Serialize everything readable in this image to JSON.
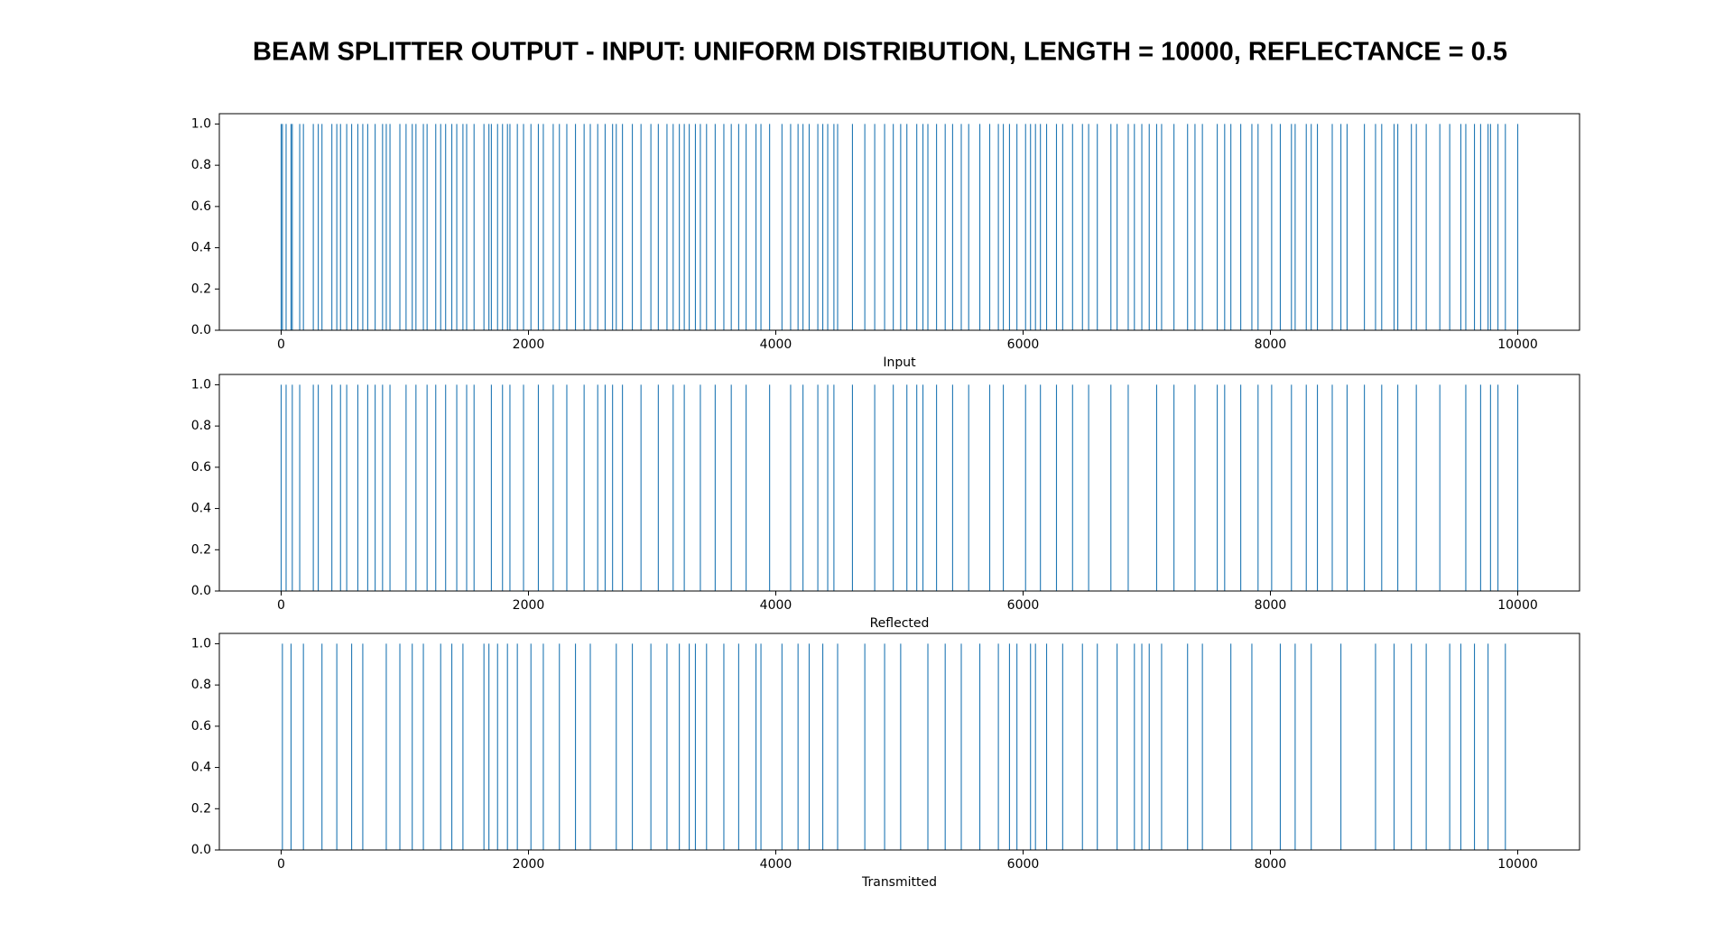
{
  "title": "BEAM SPLITTER OUTPUT -  INPUT: UNIFORM DISTRIBUTION, LENGTH = 10000, REFLECTANCE = 0.5",
  "chart_data": [
    {
      "type": "vlines",
      "xlabel": "Input",
      "color": "#1f77b4",
      "x": [
        0,
        10,
        40,
        80,
        90,
        150,
        180,
        260,
        300,
        330,
        410,
        450,
        480,
        530,
        570,
        620,
        660,
        700,
        760,
        820,
        850,
        880,
        960,
        1010,
        1060,
        1090,
        1150,
        1180,
        1250,
        1290,
        1330,
        1380,
        1420,
        1470,
        1500,
        1560,
        1640,
        1680,
        1700,
        1750,
        1790,
        1830,
        1850,
        1910,
        1960,
        2020,
        2080,
        2120,
        2200,
        2250,
        2310,
        2380,
        2450,
        2500,
        2560,
        2620,
        2680,
        2710,
        2760,
        2840,
        2910,
        2990,
        3050,
        3120,
        3170,
        3220,
        3260,
        3300,
        3350,
        3390,
        3440,
        3510,
        3580,
        3640,
        3700,
        3760,
        3840,
        3880,
        3950,
        4050,
        4120,
        4180,
        4220,
        4270,
        4340,
        4380,
        4420,
        4470,
        4500,
        4620,
        4720,
        4800,
        4880,
        4950,
        5010,
        5060,
        5140,
        5190,
        5230,
        5300,
        5370,
        5430,
        5500,
        5560,
        5650,
        5730,
        5800,
        5840,
        5890,
        5950,
        6020,
        6060,
        6100,
        6140,
        6190,
        6270,
        6320,
        6400,
        6480,
        6530,
        6600,
        6710,
        6760,
        6850,
        6900,
        6960,
        7020,
        7080,
        7120,
        7220,
        7330,
        7390,
        7450,
        7570,
        7630,
        7680,
        7760,
        7850,
        7900,
        8010,
        8080,
        8170,
        8200,
        8290,
        8330,
        8380,
        8500,
        8570,
        8620,
        8760,
        8850,
        8900,
        9000,
        9030,
        9140,
        9180,
        9260,
        9370,
        9450,
        9540,
        9580,
        9650,
        9700,
        9760,
        9780,
        9840,
        9900,
        10000
      ],
      "values": [
        1,
        1,
        1,
        1,
        1,
        1,
        1,
        1,
        1,
        1,
        1,
        1,
        1,
        1,
        1,
        1,
        1,
        1,
        1,
        1,
        1,
        1,
        1,
        1,
        1,
        1,
        1,
        1,
        1,
        1,
        1,
        1,
        1,
        1,
        1,
        1,
        1,
        1,
        1,
        1,
        1,
        1,
        1,
        1,
        1,
        1,
        1,
        1,
        1,
        1,
        1,
        1,
        1,
        1,
        1,
        1,
        1,
        1,
        1,
        1,
        1,
        1,
        1,
        1,
        1,
        1,
        1,
        1,
        1,
        1,
        1,
        1,
        1,
        1,
        1,
        1,
        1,
        1,
        1,
        1,
        1,
        1,
        1,
        1,
        1,
        1,
        1,
        1,
        1,
        1,
        1,
        1,
        1,
        1,
        1,
        1,
        1,
        1,
        1,
        1,
        1,
        1,
        1,
        1,
        1,
        1,
        1,
        1,
        1,
        1,
        1,
        1,
        1,
        1,
        1,
        1,
        1,
        1,
        1,
        1,
        1,
        1,
        1,
        1,
        1,
        1,
        1,
        1,
        1,
        1,
        1,
        1,
        1,
        1,
        1,
        1,
        1,
        1,
        1,
        1,
        1,
        1,
        1,
        1,
        1,
        1,
        1,
        1,
        1,
        1,
        1,
        1,
        1,
        1,
        1,
        1,
        1,
        1,
        1,
        1,
        1,
        1,
        1,
        1,
        1,
        1,
        1,
        1
      ],
      "xlim": [
        -500,
        10500
      ],
      "ylim": [
        0,
        1.05
      ],
      "xticks": [
        0,
        2000,
        4000,
        6000,
        8000,
        10000
      ],
      "yticks": [
        {
          "value": 0,
          "label": "0.0"
        },
        0.2,
        0.4,
        0.6,
        0.8,
        {
          "value": 1,
          "label": "1.0"
        }
      ]
    },
    {
      "type": "vlines",
      "xlabel": "Reflected",
      "color": "#1f77b4",
      "x": [
        0,
        40,
        90,
        150,
        260,
        300,
        410,
        480,
        530,
        620,
        700,
        760,
        820,
        880,
        1010,
        1090,
        1180,
        1250,
        1330,
        1420,
        1500,
        1560,
        1700,
        1790,
        1850,
        1960,
        2080,
        2200,
        2310,
        2450,
        2560,
        2620,
        2680,
        2760,
        2910,
        3050,
        3170,
        3260,
        3390,
        3510,
        3640,
        3760,
        3950,
        4120,
        4220,
        4340,
        4420,
        4470,
        4620,
        4800,
        4950,
        5060,
        5140,
        5190,
        5300,
        5430,
        5560,
        5730,
        5840,
        6020,
        6140,
        6270,
        6400,
        6530,
        6710,
        6850,
        7080,
        7220,
        7390,
        7570,
        7630,
        7760,
        7900,
        8010,
        8170,
        8290,
        8380,
        8500,
        8620,
        8760,
        8900,
        9030,
        9180,
        9370,
        9580,
        9700,
        9780,
        9840,
        10000
      ],
      "values": [
        1,
        1,
        1,
        1,
        1,
        1,
        1,
        1,
        1,
        1,
        1,
        1,
        1,
        1,
        1,
        1,
        1,
        1,
        1,
        1,
        1,
        1,
        1,
        1,
        1,
        1,
        1,
        1,
        1,
        1,
        1,
        1,
        1,
        1,
        1,
        1,
        1,
        1,
        1,
        1,
        1,
        1,
        1,
        1,
        1,
        1,
        1,
        1,
        1,
        1,
        1,
        1,
        1,
        1,
        1,
        1,
        1,
        1,
        1,
        1,
        1,
        1,
        1,
        1,
        1,
        1,
        1,
        1,
        1,
        1,
        1,
        1,
        1,
        1,
        1,
        1,
        1,
        1,
        1,
        1,
        1,
        1,
        1,
        1,
        1,
        1,
        1,
        1,
        1
      ],
      "xlim": [
        -500,
        10500
      ],
      "ylim": [
        0,
        1.05
      ],
      "xticks": [
        0,
        2000,
        4000,
        6000,
        8000,
        10000
      ],
      "yticks": [
        {
          "value": 0,
          "label": "0.0"
        },
        0.2,
        0.4,
        0.6,
        0.8,
        {
          "value": 1,
          "label": "1.0"
        }
      ]
    },
    {
      "type": "vlines",
      "xlabel": "Transmitted",
      "color": "#1f77b4",
      "x": [
        10,
        80,
        180,
        330,
        450,
        570,
        660,
        850,
        960,
        1060,
        1150,
        1290,
        1380,
        1470,
        1640,
        1680,
        1750,
        1830,
        1910,
        2020,
        2120,
        2250,
        2380,
        2500,
        2710,
        2840,
        2990,
        3120,
        3220,
        3300,
        3350,
        3440,
        3580,
        3700,
        3840,
        3880,
        4050,
        4180,
        4270,
        4380,
        4500,
        4720,
        4880,
        5010,
        5230,
        5370,
        5500,
        5650,
        5800,
        5890,
        5950,
        6060,
        6100,
        6190,
        6320,
        6480,
        6600,
        6760,
        6900,
        6960,
        7020,
        7120,
        7330,
        7450,
        7680,
        7850,
        8080,
        8200,
        8330,
        8570,
        8850,
        9000,
        9140,
        9260,
        9450,
        9540,
        9650,
        9760,
        9900
      ],
      "values": [
        1,
        1,
        1,
        1,
        1,
        1,
        1,
        1,
        1,
        1,
        1,
        1,
        1,
        1,
        1,
        1,
        1,
        1,
        1,
        1,
        1,
        1,
        1,
        1,
        1,
        1,
        1,
        1,
        1,
        1,
        1,
        1,
        1,
        1,
        1,
        1,
        1,
        1,
        1,
        1,
        1,
        1,
        1,
        1,
        1,
        1,
        1,
        1,
        1,
        1,
        1,
        1,
        1,
        1,
        1,
        1,
        1,
        1,
        1,
        1,
        1,
        1,
        1,
        1,
        1,
        1,
        1,
        1,
        1,
        1,
        1,
        1,
        1,
        1,
        1,
        1,
        1,
        1,
        1
      ],
      "xlim": [
        -500,
        10500
      ],
      "ylim": [
        0,
        1.05
      ],
      "xticks": [
        0,
        2000,
        4000,
        6000,
        8000,
        10000
      ],
      "yticks": [
        {
          "value": 0,
          "label": "0.0"
        },
        0.2,
        0.4,
        0.6,
        0.8,
        {
          "value": 1,
          "label": "1.0"
        }
      ]
    }
  ]
}
